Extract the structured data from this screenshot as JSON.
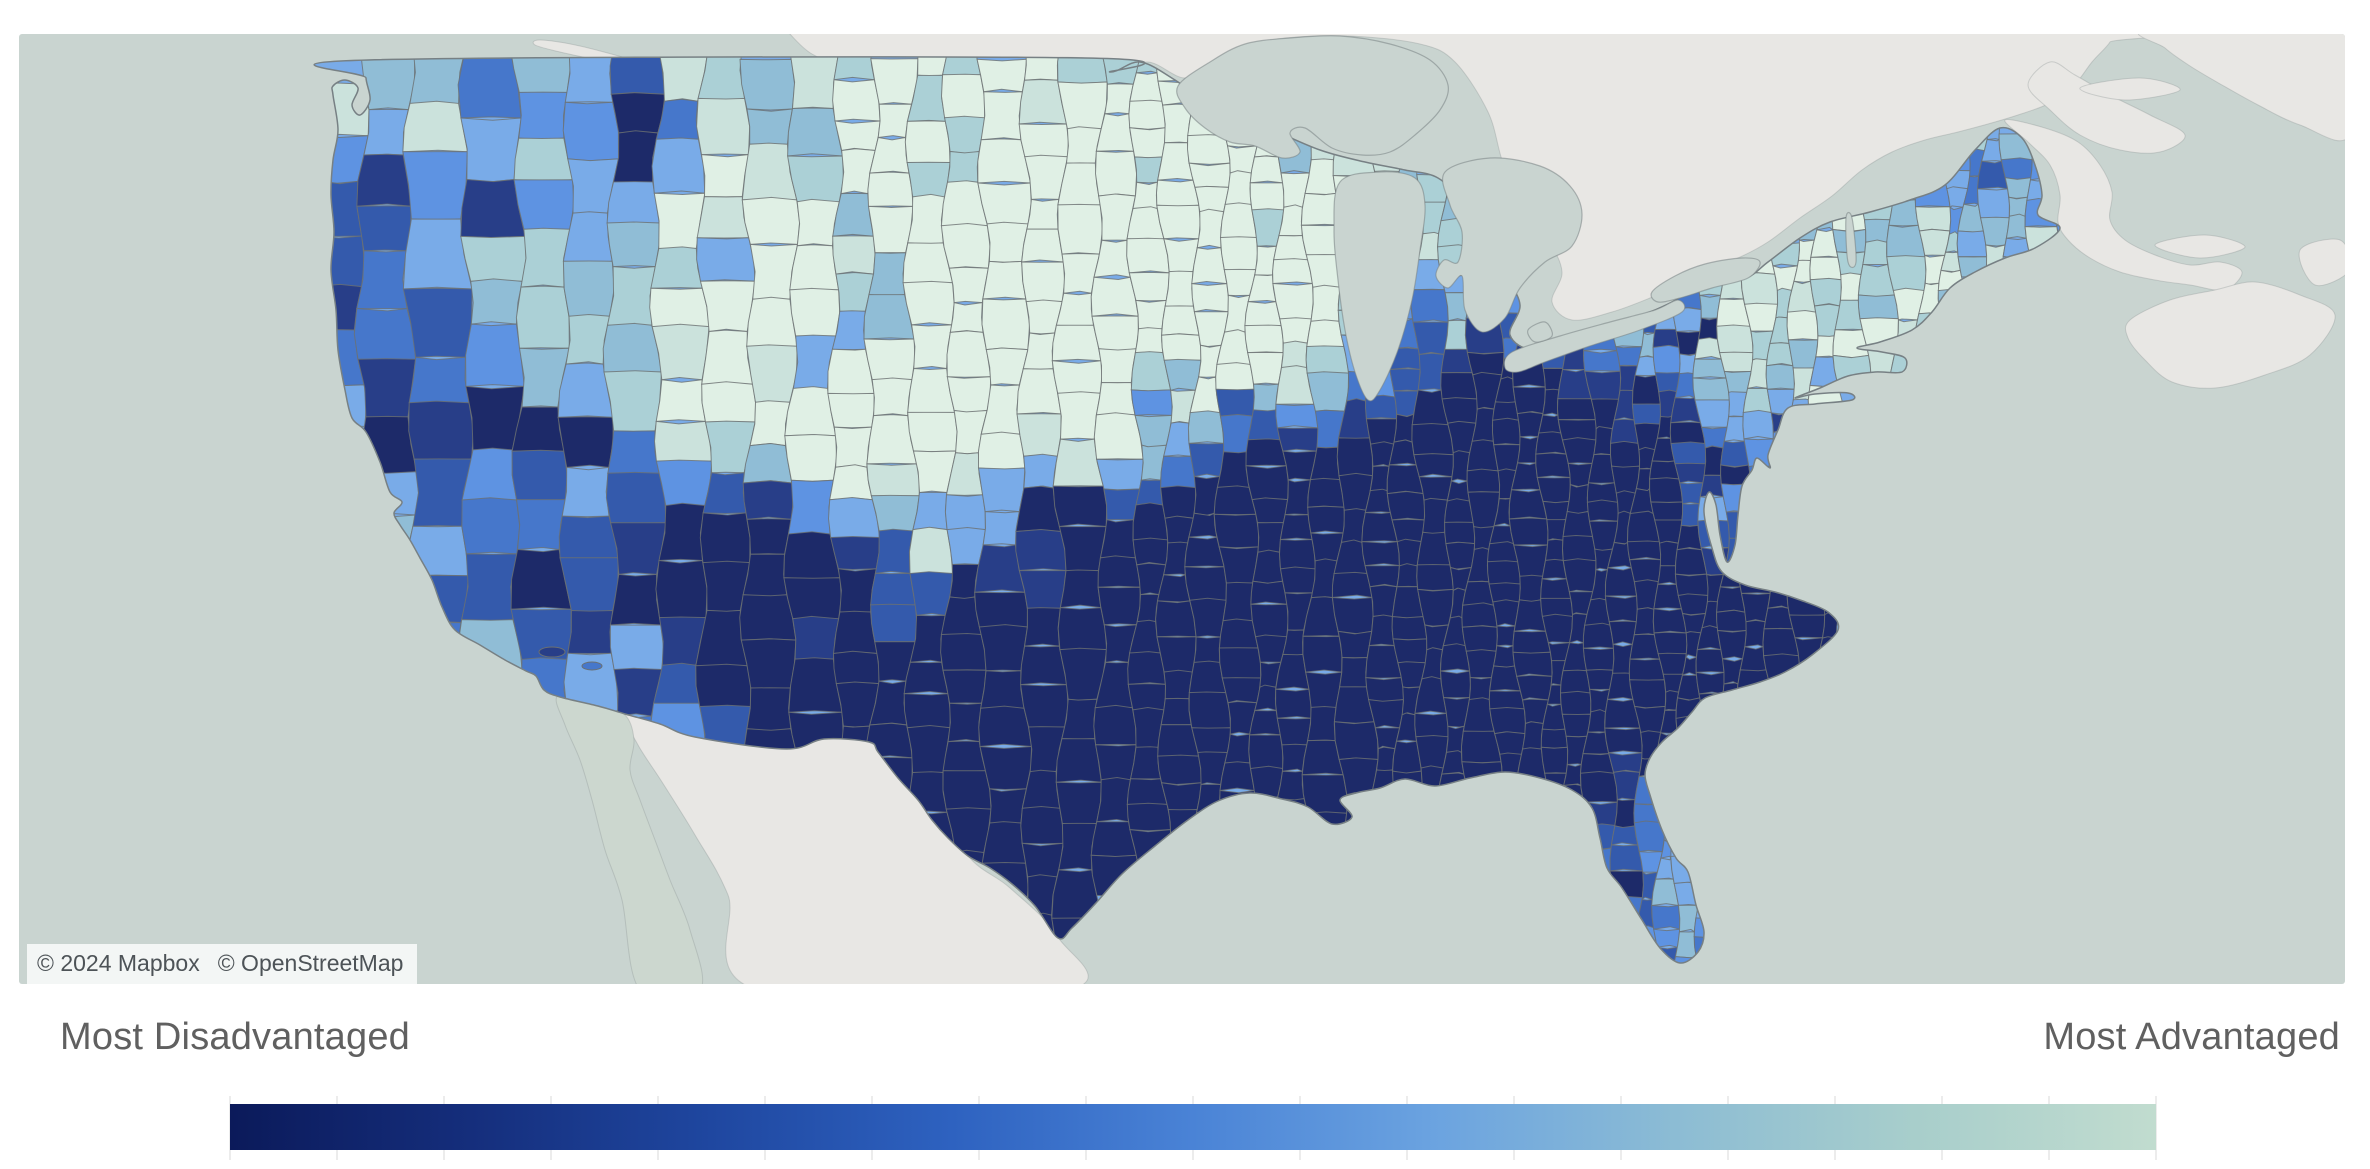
{
  "map": {
    "attribution_mapbox": "© 2024 Mapbox",
    "attribution_osm": "© OpenStreetMap",
    "ocean_color": "#c9d4d0",
    "foreign_land_color": "#e8e7e4",
    "baja_land_color": "#ccd7cf",
    "county_border_color": "#6b7072",
    "coastline_color": "#778084"
  },
  "legend": {
    "left_label": "Most Disadvantaged",
    "right_label": "Most Advantaged",
    "tick_count": 18,
    "gradient_stops": [
      "#0b1a5a",
      "#152e7c",
      "#1f47a0",
      "#2e62c0",
      "#4a83d6",
      "#6ba3e0",
      "#8cbcd4",
      "#a8cecb",
      "#c1dccf"
    ]
  },
  "choropleth": {
    "description": "US county-level choropleth, dark navy = most disadvantaged, pale seafoam = most advantaged",
    "palette_advantaged_to_disadvantaged": [
      "#e0f0e5",
      "#cbe2dc",
      "#abd0d6",
      "#90bdd6",
      "#79abe8",
      "#5e93e2",
      "#4677cb",
      "#345aac",
      "#283e88",
      "#1d2a69"
    ]
  }
}
